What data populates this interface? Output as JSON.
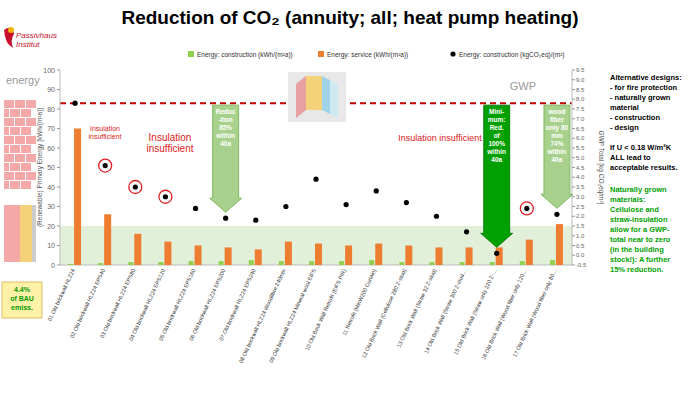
{
  "logo": [
    "Passivhaus",
    "Institut"
  ],
  "sidebar": {
    "designs": [
      "Alternative designs:",
      "- for fire protection",
      "- naturally grown",
      "   material",
      "- construction",
      "- design"
    ],
    "condition": [
      "If   U < 0.18 W/m²K",
      "ALL lead to",
      "acceptable results."
    ],
    "conclusion": [
      "Naturally grown",
      "materials:",
      "Cellulose and",
      "straw-insulation",
      "allow for a GWP-",
      "total near to zero",
      "(in the building",
      "stock!): A further",
      "15% reduction."
    ]
  },
  "chart_data": {
    "type": "bar",
    "title": "Reduction of CO₂ (annuity; all; heat pump heating)",
    "y_label": "(Renewable) Primary Energy [kWh/(m²a)]",
    "y2_label": "GWP Total [kg CO₂eq/m²]",
    "y_header": "energy",
    "y2_header": "GWP",
    "categories": [
      "01 Old brickwall HLZ24",
      "02 Old brickwall HLZ24 EPS40",
      "03 Old brickwall HLZ24 EPS80",
      "04 Old brickwall HLZ24 EPS120",
      "05 Old brickwall HLZ24 EPS160",
      "06 Old brickwall HLZ24 EPS200",
      "07 Old brickwall HLZ24 EPS240",
      "08 Old brickwall HLZ24 Woodfibre 240mm",
      "09 Old brickwall HLZ24 Mineral wool EIFS",
      "10 Old Brick Wall Retrofit (EIFS PIR)",
      "11 Retrofit (MinW200 Curtain)",
      "12 Old Brick Wall (Cellulose 280 Z-stud)",
      "13 Old Brick Wall (Straw 32 Z-stud)",
      "14 Old Brick Wall (Straw 300 Z-stud…",
      "15 Old Brick Wall (Straw only 220 Z-…",
      "16 Old Brick Wall (Wood fiber only 120…",
      "17 Old Brick Wall (Wood fiber only 80…"
    ],
    "series": [
      {
        "name": "Energy: construction (kWh/(m²a))",
        "color": "#92d050",
        "type": "bar",
        "values": [
          0.5,
          1,
          1.5,
          1.5,
          2,
          2,
          2.5,
          2,
          2,
          2,
          2.5,
          1.5,
          1.5,
          1.5,
          1.5,
          2,
          2.5
        ]
      },
      {
        "name": "Energy: service (kWh/(m²a))",
        "color": "#ed7d31",
        "type": "bar",
        "values": [
          70,
          26,
          16,
          12,
          10,
          9,
          8,
          12,
          11,
          10,
          11,
          10,
          9,
          9,
          9,
          13,
          21
        ]
      },
      {
        "name": "Energy: construction (kgCO₂eq)/(m²)",
        "color": "#000000",
        "type": "scatter",
        "marker": "circle",
        "axis": "y2",
        "values": [
          7.8,
          4.6,
          3.5,
          3.0,
          2.4,
          1.9,
          1.8,
          2.5,
          3.9,
          2.6,
          3.3,
          2.7,
          2.0,
          1.2,
          0.1,
          2.4,
          2.1
        ]
      }
    ],
    "ylim": [
      0,
      100
    ],
    "yticks": [
      0,
      10,
      20,
      30,
      40,
      50,
      60,
      70,
      80,
      90,
      100
    ],
    "y2lim": [
      -0.5,
      9.5
    ],
    "y2ticks": [
      -0.5,
      {
        "value": 0,
        "label": "0.0"
      },
      0.5,
      {
        "value": 1,
        "label": "1.0"
      },
      1.5,
      {
        "value": 2,
        "label": "2.0"
      },
      2.5,
      {
        "value": 3,
        "label": "3.0"
      },
      3.5,
      {
        "value": 4,
        "label": "4.0"
      },
      4.5,
      {
        "value": 5,
        "label": "5.0"
      },
      5.5,
      {
        "value": 6,
        "label": "6.0"
      },
      6.5,
      {
        "value": 7,
        "label": "7.0"
      },
      7.5,
      {
        "value": 8,
        "label": "8.0"
      },
      8.5,
      {
        "value": 9,
        "label": "9.0"
      },
      9.5
    ],
    "target_band": [
      0,
      20
    ],
    "reference_line": 7.8,
    "grid": false,
    "legend": "top",
    "annotations": [
      {
        "lines": [
          "Insulation",
          "insufficient"
        ]
      },
      {
        "lines": [
          "Insulation",
          "insufficient"
        ]
      },
      {
        "lines": [
          "Insulation insufficient"
        ]
      },
      {
        "lines": [
          "Reduc",
          "-tion",
          "85%",
          "within",
          "40a"
        ]
      },
      {
        "lines": [
          "Mini-",
          "mum:",
          "Red.",
          "of",
          "100%",
          "within",
          "40a"
        ]
      },
      {
        "lines": [
          "wood",
          "fiber",
          "only 80",
          "mm",
          "74%",
          "within",
          "40a"
        ]
      },
      {
        "lines": [
          "4.4%",
          "of BAU",
          "emiss."
        ]
      }
    ]
  }
}
